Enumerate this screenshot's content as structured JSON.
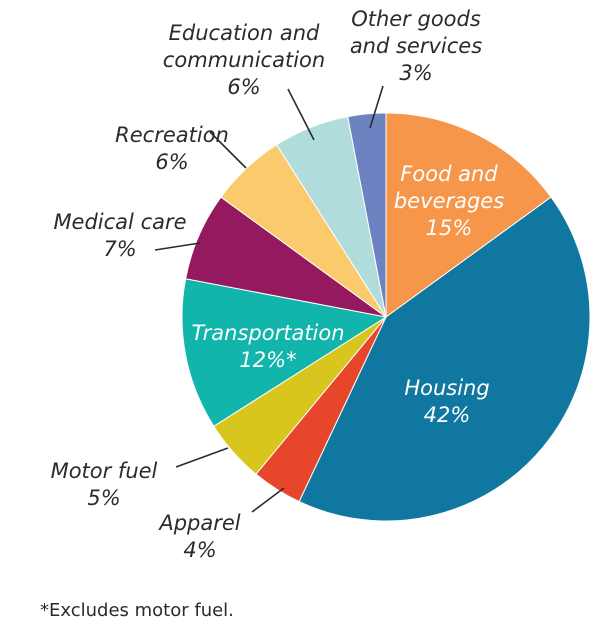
{
  "chart_data": {
    "type": "pie",
    "title": "",
    "categories": [
      "Food and beverages",
      "Housing",
      "Apparel",
      "Motor fuel",
      "Transportation",
      "Medical care",
      "Recreation",
      "Education and communication",
      "Other goods and services"
    ],
    "values": [
      15,
      42,
      4,
      5,
      12,
      7,
      6,
      6,
      3
    ],
    "colors": [
      "#f5964a",
      "#0f77a0",
      "#e8462a",
      "#d8c61e",
      "#12b5ac",
      "#95195f",
      "#fbca6c",
      "#b0dcdb",
      "#6d82c0"
    ],
    "labels": [
      {
        "lines": [
          "Food and",
          "beverages"
        ],
        "value": "15%"
      },
      {
        "lines": [
          "Housing"
        ],
        "value": "42%"
      },
      {
        "lines": [
          "Apparel"
        ],
        "value": "4%"
      },
      {
        "lines": [
          "Motor fuel"
        ],
        "value": "5%"
      },
      {
        "lines": [
          "Transportation"
        ],
        "value": "12%*"
      },
      {
        "lines": [
          "Medical care"
        ],
        "value": "7%"
      },
      {
        "lines": [
          "Recreation"
        ],
        "value": "6%"
      },
      {
        "lines": [
          "Education and",
          "communication"
        ],
        "value": "6%"
      },
      {
        "lines": [
          "Other goods",
          "and services"
        ],
        "value": "3%"
      }
    ],
    "start": "12 o'clock",
    "direction": "clockwise",
    "footnote": "*Excludes motor fuel."
  }
}
